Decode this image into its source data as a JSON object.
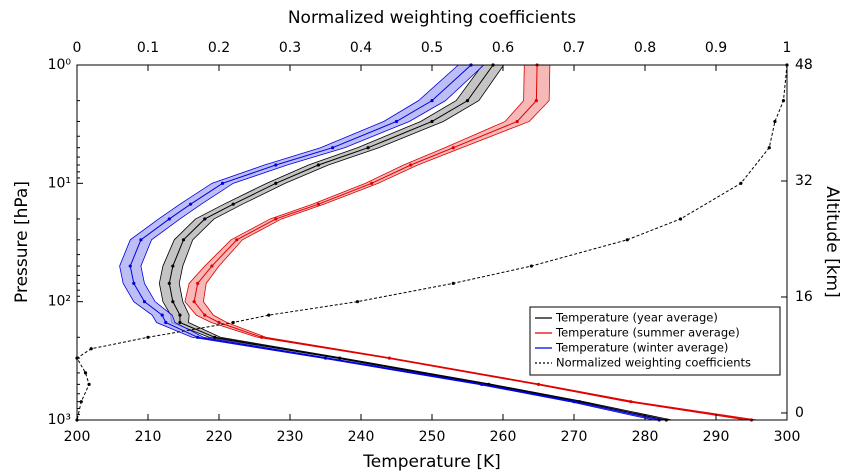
{
  "chart_data": {
    "type": "line",
    "xlabel": "Temperature [K]",
    "x2label": "Normalized weighting coefficients",
    "ylabel": "Pressure [hPa]",
    "y2label": "Altitude [km]",
    "xlim": [
      200,
      300
    ],
    "xticks": [
      200,
      210,
      220,
      230,
      240,
      250,
      260,
      270,
      280,
      290,
      300
    ],
    "x2lim": [
      0,
      1
    ],
    "x2ticks": [
      0,
      0.1,
      0.2,
      0.3,
      0.4,
      0.5,
      0.6,
      0.7,
      0.8,
      0.9,
      1
    ],
    "ylim": [
      1000,
      1
    ],
    "yscale": "log",
    "yticks": [
      {
        "value": 1,
        "label": "10⁰"
      },
      {
        "value": 10,
        "label": "10¹"
      },
      {
        "value": 100,
        "label": "10²"
      },
      {
        "value": 1000,
        "label": "10³"
      }
    ],
    "y2lim": [
      -0.97,
      48
    ],
    "y2ticks": [
      0,
      16,
      32,
      48
    ],
    "legend": "lower right",
    "pressure": [
      1,
      2,
      3,
      5,
      7,
      10,
      15,
      20,
      30,
      50,
      70,
      100,
      130,
      150,
      200,
      300,
      500,
      700,
      1000
    ],
    "series": [
      {
        "name": "Temperature (year average)",
        "color": "#000000",
        "band_color": "#b0b0b0",
        "values": [
          258.6,
          255,
          250,
          241,
          234,
          228,
          222,
          218,
          215,
          213.5,
          213,
          213.5,
          214.5,
          214.5,
          219.4,
          237,
          258,
          270.8,
          283
        ],
        "spread": [
          1.5,
          1.6,
          1.6,
          1.5,
          1.4,
          1.3,
          1.3,
          1.3,
          1.3,
          1.4,
          1.4,
          1.4,
          1.3,
          1.2,
          0.8,
          0.5,
          0.5,
          0.6,
          0.8
        ]
      },
      {
        "name": "Temperature (summer average)",
        "color": "#e00000",
        "band_color": "#f4a0a0",
        "values": [
          264.8,
          264.7,
          262,
          253,
          247,
          241.5,
          234,
          228,
          222.5,
          219,
          217,
          216.5,
          218,
          220,
          226,
          244,
          265,
          278,
          295
        ],
        "spread": [
          1.8,
          1.8,
          1.7,
          1.2,
          1.0,
          0.9,
          0.8,
          0.8,
          0.8,
          1.0,
          1.2,
          1.3,
          1.2,
          1.1,
          0.6,
          0.4,
          0.4,
          0.5,
          0.8
        ]
      },
      {
        "name": "Temperature (winter average)",
        "color": "#0000e0",
        "band_color": "#a8a8f4",
        "values": [
          255.5,
          250,
          245,
          236,
          228,
          220.5,
          216,
          213,
          209,
          207.5,
          208,
          209.5,
          212,
          212.5,
          217,
          235,
          257,
          270,
          282
        ],
        "spread": [
          1.8,
          1.9,
          1.8,
          1.7,
          1.6,
          1.5,
          1.5,
          1.5,
          1.5,
          1.5,
          1.5,
          1.5,
          1.4,
          1.3,
          0.8,
          0.5,
          0.5,
          0.6,
          0.8
        ]
      },
      {
        "name": "Normalized weighting coefficients",
        "color": "#000000",
        "axis": "x2",
        "dash": "dotted",
        "pressure": [
          1,
          2,
          3,
          5,
          10,
          20,
          30,
          50,
          70,
          100,
          130,
          150,
          200,
          250,
          300,
          400,
          500,
          700,
          1000
        ],
        "values": [
          1,
          0.995,
          0.983,
          0.975,
          0.935,
          0.85,
          0.775,
          0.64,
          0.53,
          0.395,
          0.27,
          0.22,
          0.1,
          0.02,
          0,
          0.012,
          0.017,
          0.006,
          0
        ]
      }
    ]
  }
}
